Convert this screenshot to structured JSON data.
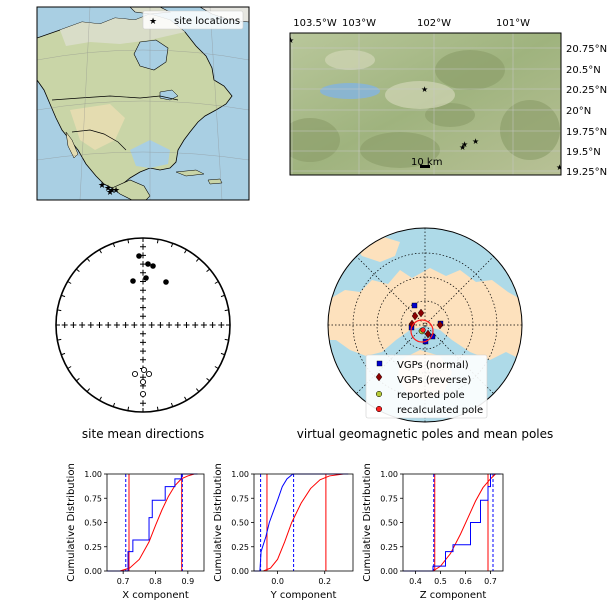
{
  "colors": {
    "ocean": "#a9cfe3",
    "land": "#c9d5a7",
    "land_polar": "#fde1bd",
    "ocean_polar": "#aedae8",
    "site_marker": "#ff0000",
    "vgp_normal": "#0000cc",
    "vgp_reverse": "#8b0000",
    "reported_pole": "#b8cc3a",
    "recalculated_pole": "#ff2020",
    "cdf_data": "#0000ff",
    "cdf_model": "#ff0000"
  },
  "map_overview": {
    "legend": "site locations",
    "marker_icon": "red-star"
  },
  "map_detail": {
    "lon_labels": [
      "103.5°W",
      "103°W",
      "102°W",
      "101°W"
    ],
    "lat_labels": [
      "20.75°N",
      "20.5°N",
      "20.25°N",
      "20°N",
      "19.75°N",
      "19.5°N",
      "19.25°N"
    ],
    "scale_bar": "10 km"
  },
  "stereonet": {
    "title": "site mean directions"
  },
  "polar_map": {
    "title": "virtual geomagnetic poles and mean poles",
    "legend": [
      "VGPs (normal)",
      "VGPs (reverse)",
      "reported pole",
      "recalculated pole"
    ]
  },
  "chart_data": [
    {
      "type": "line",
      "panel": "X",
      "xlabel": "X component",
      "ylabel": "Cumulative Distribution",
      "xlim": [
        0.65,
        0.95
      ],
      "ylim": [
        0.0,
        1.0
      ],
      "xticks": [
        "0.7",
        "0.8",
        "0.9"
      ],
      "yticks": [
        "0.00",
        "0.25",
        "0.50",
        "0.75",
        "1.00"
      ],
      "data_steps": [
        [
          0.65,
          0.0
        ],
        [
          0.715,
          0.0
        ],
        [
          0.715,
          0.2
        ],
        [
          0.73,
          0.2
        ],
        [
          0.73,
          0.32
        ],
        [
          0.78,
          0.32
        ],
        [
          0.78,
          0.55
        ],
        [
          0.79,
          0.55
        ],
        [
          0.79,
          0.73
        ],
        [
          0.83,
          0.73
        ],
        [
          0.83,
          0.87
        ],
        [
          0.86,
          0.87
        ],
        [
          0.86,
          0.95
        ],
        [
          0.88,
          0.95
        ],
        [
          0.88,
          1.0
        ],
        [
          0.93,
          1.0
        ]
      ],
      "model_curve": [
        [
          0.69,
          0.0
        ],
        [
          0.72,
          0.03
        ],
        [
          0.75,
          0.12
        ],
        [
          0.78,
          0.3
        ],
        [
          0.8,
          0.47
        ],
        [
          0.82,
          0.63
        ],
        [
          0.84,
          0.77
        ],
        [
          0.86,
          0.88
        ],
        [
          0.88,
          0.95
        ],
        [
          0.9,
          0.98
        ],
        [
          0.92,
          1.0
        ]
      ],
      "data_bounds": [
        0.708,
        0.883
      ],
      "model_bounds": [
        0.718,
        0.881
      ]
    },
    {
      "type": "line",
      "panel": "Y",
      "xlabel": "Y component",
      "ylabel": "Cumulative Distribution",
      "xlim": [
        -0.1,
        0.32
      ],
      "ylim": [
        0.0,
        1.0
      ],
      "xticks": [
        "0.0",
        "0.2"
      ],
      "yticks": [
        "0.00",
        "0.25",
        "0.50",
        "0.75",
        "1.00"
      ],
      "data_steps": [
        [
          -0.1,
          0.0
        ],
        [
          -0.075,
          0.0
        ],
        [
          -0.07,
          0.2
        ],
        [
          -0.05,
          0.35
        ],
        [
          -0.035,
          0.5
        ],
        [
          -0.02,
          0.6
        ],
        [
          0.0,
          0.73
        ],
        [
          0.02,
          0.87
        ],
        [
          0.04,
          0.95
        ],
        [
          0.065,
          1.0
        ],
        [
          0.3,
          1.0
        ]
      ],
      "model_curve": [
        [
          -0.06,
          0.0
        ],
        [
          -0.03,
          0.03
        ],
        [
          0.0,
          0.12
        ],
        [
          0.03,
          0.3
        ],
        [
          0.06,
          0.5
        ],
        [
          0.1,
          0.7
        ],
        [
          0.14,
          0.85
        ],
        [
          0.18,
          0.94
        ],
        [
          0.22,
          0.98
        ],
        [
          0.28,
          1.0
        ]
      ],
      "data_bounds": [
        -0.072,
        0.068
      ],
      "model_bounds": [
        -0.045,
        0.205
      ]
    },
    {
      "type": "line",
      "panel": "Z",
      "xlabel": "Z component",
      "ylabel": "Cumulative Distribution",
      "xlim": [
        0.35,
        0.75
      ],
      "ylim": [
        0.0,
        1.0
      ],
      "xticks": [
        "0.4",
        "0.5",
        "0.6",
        "0.7"
      ],
      "yticks": [
        "0.00",
        "0.25",
        "0.50",
        "0.75",
        "1.00"
      ],
      "data_steps": [
        [
          0.35,
          0.0
        ],
        [
          0.47,
          0.0
        ],
        [
          0.47,
          0.05
        ],
        [
          0.52,
          0.05
        ],
        [
          0.52,
          0.2
        ],
        [
          0.55,
          0.2
        ],
        [
          0.55,
          0.27
        ],
        [
          0.62,
          0.27
        ],
        [
          0.62,
          0.5
        ],
        [
          0.66,
          0.5
        ],
        [
          0.66,
          0.73
        ],
        [
          0.69,
          0.73
        ],
        [
          0.69,
          0.87
        ],
        [
          0.7,
          0.87
        ],
        [
          0.7,
          1.0
        ],
        [
          0.74,
          1.0
        ]
      ],
      "model_curve": [
        [
          0.47,
          0.0
        ],
        [
          0.5,
          0.05
        ],
        [
          0.54,
          0.18
        ],
        [
          0.58,
          0.38
        ],
        [
          0.61,
          0.55
        ],
        [
          0.64,
          0.72
        ],
        [
          0.67,
          0.86
        ],
        [
          0.7,
          0.95
        ],
        [
          0.72,
          1.0
        ]
      ],
      "data_bounds": [
        0.473,
        0.71
      ],
      "model_bounds": [
        0.477,
        0.69
      ]
    }
  ]
}
